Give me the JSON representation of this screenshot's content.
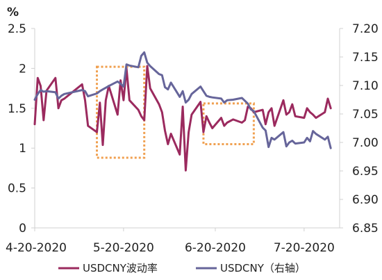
{
  "chart_data": {
    "type": "line",
    "y_left_unit": "%",
    "y_left_ticks": [
      "0",
      "0.5",
      "1",
      "1.5",
      "2",
      "2.5"
    ],
    "y_left_range": [
      0,
      2.5
    ],
    "y_right_ticks": [
      "6.85",
      "6.90",
      "6.95",
      "7.00",
      "7.05",
      "7.10",
      "7.15",
      "7.20"
    ],
    "y_right_range": [
      6.85,
      7.2
    ],
    "x_range": [
      "2020-04-20",
      "2020-08-01"
    ],
    "x_ticks": [
      {
        "date": "2020-04-20",
        "label": "4-20-2020"
      },
      {
        "date": "2020-05-20",
        "label": "5-20-2020"
      },
      {
        "date": "2020-06-20",
        "label": "6-20-2020"
      },
      {
        "date": "2020-07-20",
        "label": "7-20-2020"
      }
    ],
    "grid": false,
    "legend_position": "bottom",
    "series": [
      {
        "name": "USDCNY波动率",
        "axis": "left",
        "color": "#9b2a5e",
        "points": [
          [
            "2020-04-20",
            1.3
          ],
          [
            "2020-04-21",
            1.88
          ],
          [
            "2020-04-22",
            1.78
          ],
          [
            "2020-04-23",
            1.35
          ],
          [
            "2020-04-24",
            1.72
          ],
          [
            "2020-04-27",
            1.88
          ],
          [
            "2020-04-28",
            1.5
          ],
          [
            "2020-04-29",
            1.6
          ],
          [
            "2020-04-30",
            1.62
          ],
          [
            "2020-05-06",
            1.8
          ],
          [
            "2020-05-07",
            1.6
          ],
          [
            "2020-05-08",
            1.28
          ],
          [
            "2020-05-11",
            1.2
          ],
          [
            "2020-05-12",
            1.57
          ],
          [
            "2020-05-13",
            1.04
          ],
          [
            "2020-05-14",
            1.6
          ],
          [
            "2020-05-15",
            1.78
          ],
          [
            "2020-05-18",
            1.42
          ],
          [
            "2020-05-19",
            1.85
          ],
          [
            "2020-05-20",
            1.6
          ],
          [
            "2020-05-21",
            2.0
          ],
          [
            "2020-05-22",
            1.6
          ],
          [
            "2020-05-25",
            1.48
          ],
          [
            "2020-05-26",
            1.4
          ],
          [
            "2020-05-27",
            1.35
          ],
          [
            "2020-05-28",
            2.03
          ],
          [
            "2020-05-29",
            1.75
          ],
          [
            "2020-06-01",
            1.55
          ],
          [
            "2020-06-02",
            1.45
          ],
          [
            "2020-06-03",
            1.22
          ],
          [
            "2020-06-04",
            1.05
          ],
          [
            "2020-06-05",
            1.18
          ],
          [
            "2020-06-08",
            0.92
          ],
          [
            "2020-06-09",
            1.52
          ],
          [
            "2020-06-10",
            0.72
          ],
          [
            "2020-06-11",
            1.2
          ],
          [
            "2020-06-12",
            1.42
          ],
          [
            "2020-06-15",
            1.58
          ],
          [
            "2020-06-16",
            1.2
          ],
          [
            "2020-06-17",
            1.4
          ],
          [
            "2020-06-18",
            1.32
          ],
          [
            "2020-06-19",
            1.25
          ],
          [
            "2020-06-22",
            1.38
          ],
          [
            "2020-06-23",
            1.28
          ],
          [
            "2020-06-24",
            1.32
          ],
          [
            "2020-06-26",
            1.36
          ],
          [
            "2020-06-29",
            1.32
          ],
          [
            "2020-06-30",
            1.35
          ],
          [
            "2020-07-01",
            1.52
          ],
          [
            "2020-07-02",
            1.5
          ],
          [
            "2020-07-03",
            1.45
          ],
          [
            "2020-07-06",
            1.48
          ],
          [
            "2020-07-07",
            1.3
          ],
          [
            "2020-07-08",
            1.45
          ],
          [
            "2020-07-09",
            1.5
          ],
          [
            "2020-07-10",
            1.28
          ],
          [
            "2020-07-13",
            1.6
          ],
          [
            "2020-07-14",
            1.42
          ],
          [
            "2020-07-15",
            1.45
          ],
          [
            "2020-07-16",
            1.55
          ],
          [
            "2020-07-17",
            1.4
          ],
          [
            "2020-07-20",
            1.38
          ],
          [
            "2020-07-21",
            1.5
          ],
          [
            "2020-07-22",
            1.45
          ],
          [
            "2020-07-23",
            1.42
          ],
          [
            "2020-07-24",
            1.38
          ],
          [
            "2020-07-27",
            1.45
          ],
          [
            "2020-07-28",
            1.62
          ],
          [
            "2020-07-29",
            1.5
          ]
        ]
      },
      {
        "name": "USDCNY（右轴）",
        "axis": "right",
        "color": "#66659a",
        "points": [
          [
            "2020-04-20",
            7.075
          ],
          [
            "2020-04-21",
            7.085
          ],
          [
            "2020-04-22",
            7.092
          ],
          [
            "2020-04-23",
            7.089
          ],
          [
            "2020-04-24",
            7.09
          ],
          [
            "2020-04-27",
            7.088
          ],
          [
            "2020-04-28",
            7.077
          ],
          [
            "2020-04-29",
            7.082
          ],
          [
            "2020-04-30",
            7.085
          ],
          [
            "2020-05-06",
            7.092
          ],
          [
            "2020-05-07",
            7.09
          ],
          [
            "2020-05-08",
            7.081
          ],
          [
            "2020-05-11",
            7.086
          ],
          [
            "2020-05-12",
            7.09
          ],
          [
            "2020-05-13",
            7.093
          ],
          [
            "2020-05-14",
            7.096
          ],
          [
            "2020-05-15",
            7.099
          ],
          [
            "2020-05-18",
            7.107
          ],
          [
            "2020-05-19",
            7.103
          ],
          [
            "2020-05-20",
            7.098
          ],
          [
            "2020-05-21",
            7.137
          ],
          [
            "2020-05-22",
            7.135
          ],
          [
            "2020-05-25",
            7.132
          ],
          [
            "2020-05-26",
            7.152
          ],
          [
            "2020-05-27",
            7.158
          ],
          [
            "2020-05-28",
            7.14
          ],
          [
            "2020-05-29",
            7.134
          ],
          [
            "2020-06-01",
            7.12
          ],
          [
            "2020-06-02",
            7.118
          ],
          [
            "2020-06-03",
            7.097
          ],
          [
            "2020-06-04",
            7.093
          ],
          [
            "2020-06-05",
            7.105
          ],
          [
            "2020-06-08",
            7.08
          ],
          [
            "2020-06-09",
            7.09
          ],
          [
            "2020-06-10",
            7.07
          ],
          [
            "2020-06-11",
            7.075
          ],
          [
            "2020-06-12",
            7.085
          ],
          [
            "2020-06-15",
            7.098
          ],
          [
            "2020-06-16",
            7.09
          ],
          [
            "2020-06-17",
            7.082
          ],
          [
            "2020-06-18",
            7.08
          ],
          [
            "2020-06-19",
            7.079
          ],
          [
            "2020-06-22",
            7.077
          ],
          [
            "2020-06-23",
            7.07
          ],
          [
            "2020-06-24",
            7.074
          ],
          [
            "2020-06-26",
            7.075
          ],
          [
            "2020-06-29",
            7.078
          ],
          [
            "2020-06-30",
            7.073
          ],
          [
            "2020-07-01",
            7.068
          ],
          [
            "2020-07-02",
            7.058
          ],
          [
            "2020-07-03",
            7.055
          ],
          [
            "2020-07-06",
            7.026
          ],
          [
            "2020-07-07",
            7.021
          ],
          [
            "2020-07-08",
            6.992
          ],
          [
            "2020-07-09",
            7.008
          ],
          [
            "2020-07-10",
            7.005
          ],
          [
            "2020-07-13",
            7.018
          ],
          [
            "2020-07-14",
            6.993
          ],
          [
            "2020-07-15",
            7.0
          ],
          [
            "2020-07-16",
            7.003
          ],
          [
            "2020-07-17",
            6.998
          ],
          [
            "2020-07-20",
            7.0
          ],
          [
            "2020-07-21",
            7.008
          ],
          [
            "2020-07-22",
            7.002
          ],
          [
            "2020-07-23",
            7.02
          ],
          [
            "2020-07-24",
            7.015
          ],
          [
            "2020-07-27",
            7.005
          ],
          [
            "2020-07-28",
            7.01
          ],
          [
            "2020-07-29",
            6.99
          ]
        ]
      }
    ],
    "annotations": [
      {
        "type": "dotted-box",
        "color": "#f0a050",
        "x": [
          "2020-05-11",
          "2020-05-27"
        ],
        "y_left": [
          0.88,
          2.02
        ]
      },
      {
        "type": "dotted-box",
        "color": "#f0a050",
        "x": [
          "2020-06-16",
          "2020-07-03"
        ],
        "y_left": [
          1.05,
          1.56
        ]
      }
    ]
  }
}
